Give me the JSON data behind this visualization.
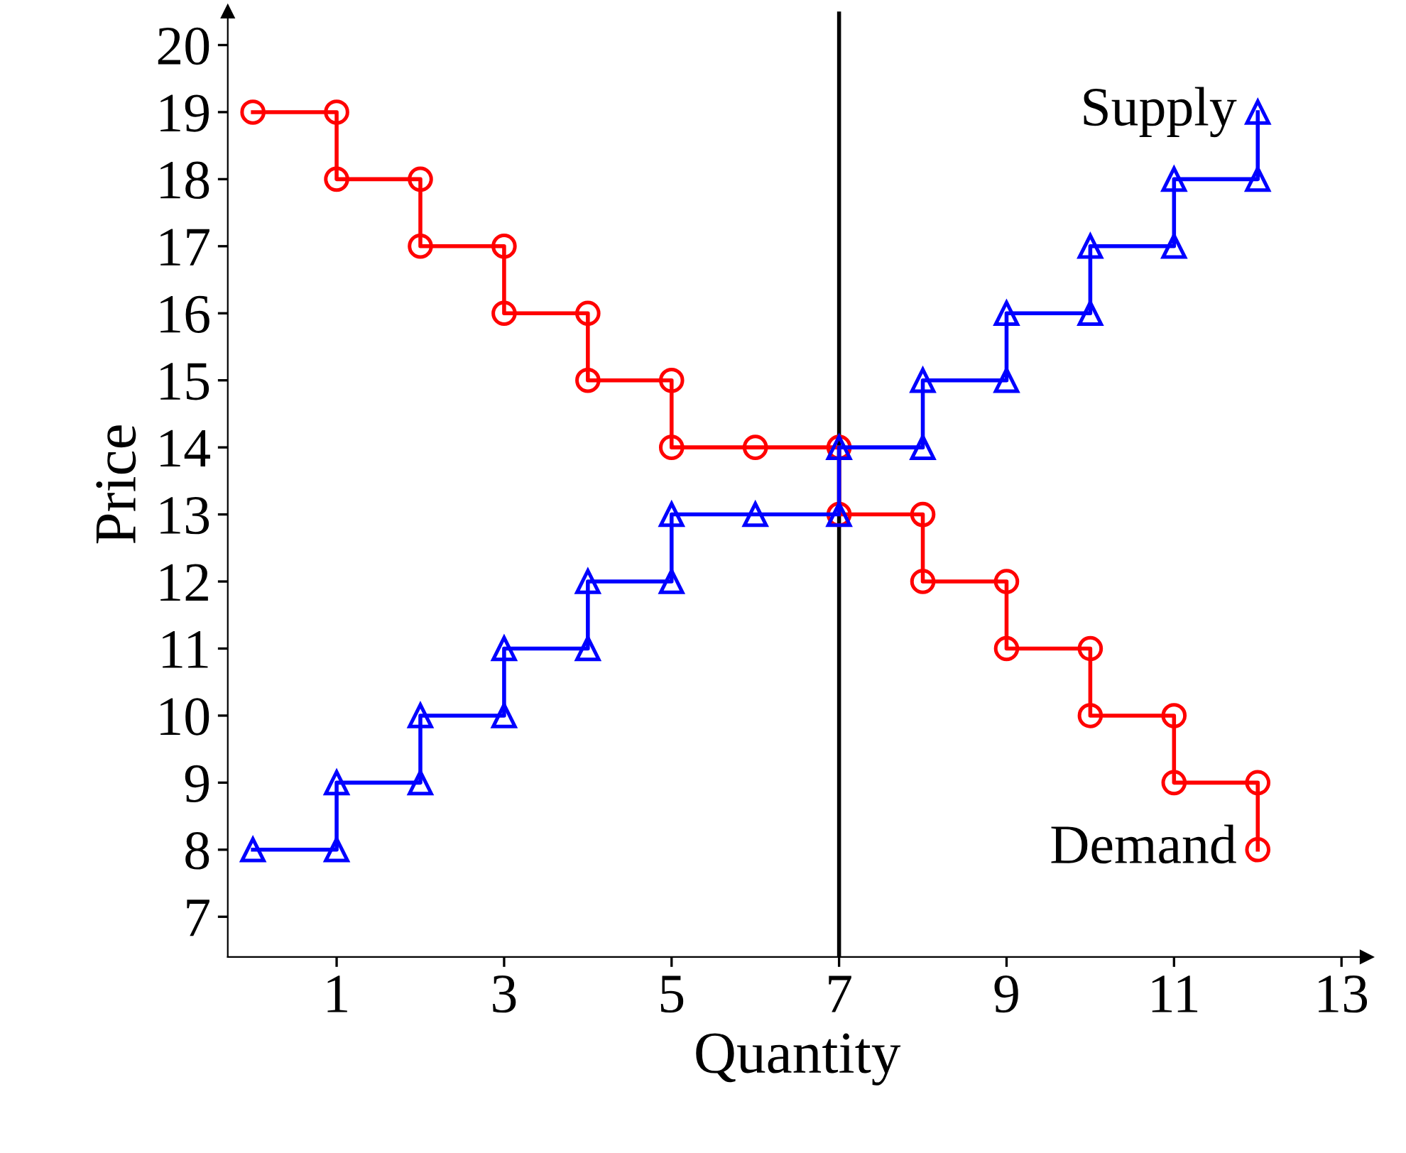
{
  "chart_data": {
    "type": "line",
    "xlabel": "Quantity",
    "ylabel": "Price",
    "xlim": [
      -0.3,
      13.3
    ],
    "ylim": [
      6.4,
      20.5
    ],
    "xticks": [
      1,
      3,
      5,
      7,
      9,
      11,
      13
    ],
    "yticks": [
      7,
      8,
      9,
      10,
      11,
      12,
      13,
      14,
      15,
      16,
      17,
      18,
      19,
      20
    ],
    "grid": false,
    "legend": false,
    "line_style": "solid",
    "series": [
      {
        "name": "Demand",
        "color": "#ff0000",
        "marker": "circle",
        "x": [
          0,
          1,
          1,
          2,
          2,
          3,
          3,
          4,
          4,
          5,
          5,
          6,
          7,
          7,
          8,
          8,
          9,
          9,
          10,
          10,
          11,
          11,
          12,
          12
        ],
        "values": [
          19,
          19,
          18,
          18,
          17,
          17,
          16,
          16,
          15,
          15,
          14,
          14,
          14,
          13,
          13,
          12,
          12,
          11,
          11,
          10,
          10,
          9,
          9,
          8
        ]
      },
      {
        "name": "Supply",
        "color": "#0000ff",
        "marker": "triangle",
        "x": [
          0,
          1,
          1,
          2,
          2,
          3,
          3,
          4,
          4,
          5,
          5,
          6,
          7,
          7,
          8,
          8,
          9,
          9,
          10,
          10,
          11,
          11,
          12,
          12
        ],
        "values": [
          8,
          8,
          9,
          9,
          10,
          10,
          11,
          11,
          12,
          12,
          13,
          13,
          13,
          14,
          14,
          15,
          15,
          16,
          16,
          17,
          17,
          18,
          18,
          19
        ]
      }
    ],
    "ref_lines": [
      {
        "axis": "x",
        "value": 7,
        "color": "#000000"
      }
    ]
  }
}
